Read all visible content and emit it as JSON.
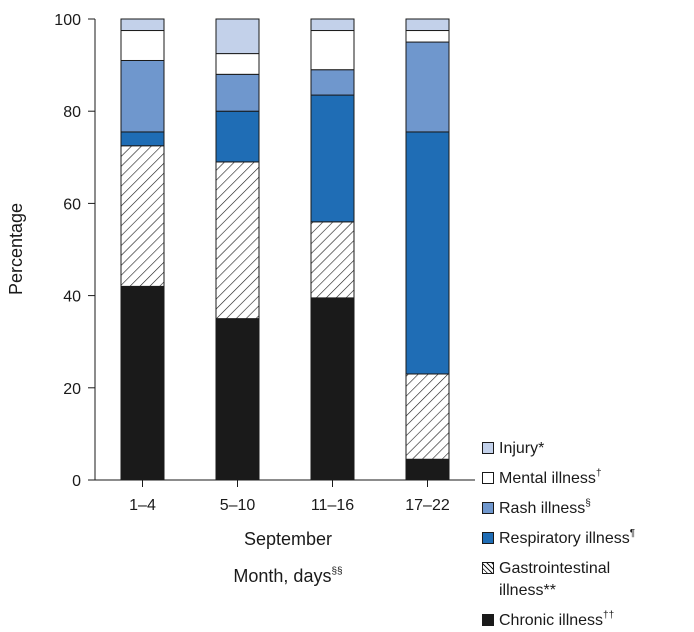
{
  "chart_data": {
    "type": "bar",
    "stacked": true,
    "categories": [
      "1–4",
      "5–10",
      "11–16",
      "17–22"
    ],
    "xlabel": "September",
    "xlabel2": "Month, days",
    "xlabel2_sup": "§§",
    "ylabel": "Percentage",
    "ylim": [
      0,
      100
    ],
    "yticks": [
      0,
      20,
      40,
      60,
      80,
      100
    ],
    "series": [
      {
        "name": "Chronic illness",
        "sup": "††",
        "fill": "#1a1a1a",
        "pattern": "solid",
        "values": [
          42,
          35,
          39.5,
          4.5
        ]
      },
      {
        "name": "Gastrointestinal illness**",
        "fill": "#ffffff",
        "pattern": "hatch",
        "values": [
          30.5,
          34,
          16.5,
          18.5
        ]
      },
      {
        "name": "Respiratory illness",
        "sup": "¶",
        "fill": "#1f6db5",
        "pattern": "solid",
        "values": [
          3,
          11,
          27.5,
          52.5
        ]
      },
      {
        "name": "Rash illness",
        "sup": "§",
        "fill": "#6f97cd",
        "pattern": "solid",
        "values": [
          15.5,
          8,
          5.5,
          19.5
        ]
      },
      {
        "name": "Mental illness",
        "sup": "†",
        "fill": "#ffffff",
        "pattern": "solid",
        "values": [
          6.5,
          4.5,
          8.5,
          2.5
        ]
      },
      {
        "name": "Injury*",
        "fill": "#c3d1ea",
        "pattern": "solid",
        "values": [
          2.5,
          7.5,
          2.5,
          2.5
        ]
      }
    ],
    "legend_order": [
      "Injury*",
      "Mental illness",
      "Rash illness",
      "Respiratory illness",
      "Gastrointestinal illness**",
      "Chronic illness"
    ],
    "legend_position": "right",
    "grid": false
  }
}
